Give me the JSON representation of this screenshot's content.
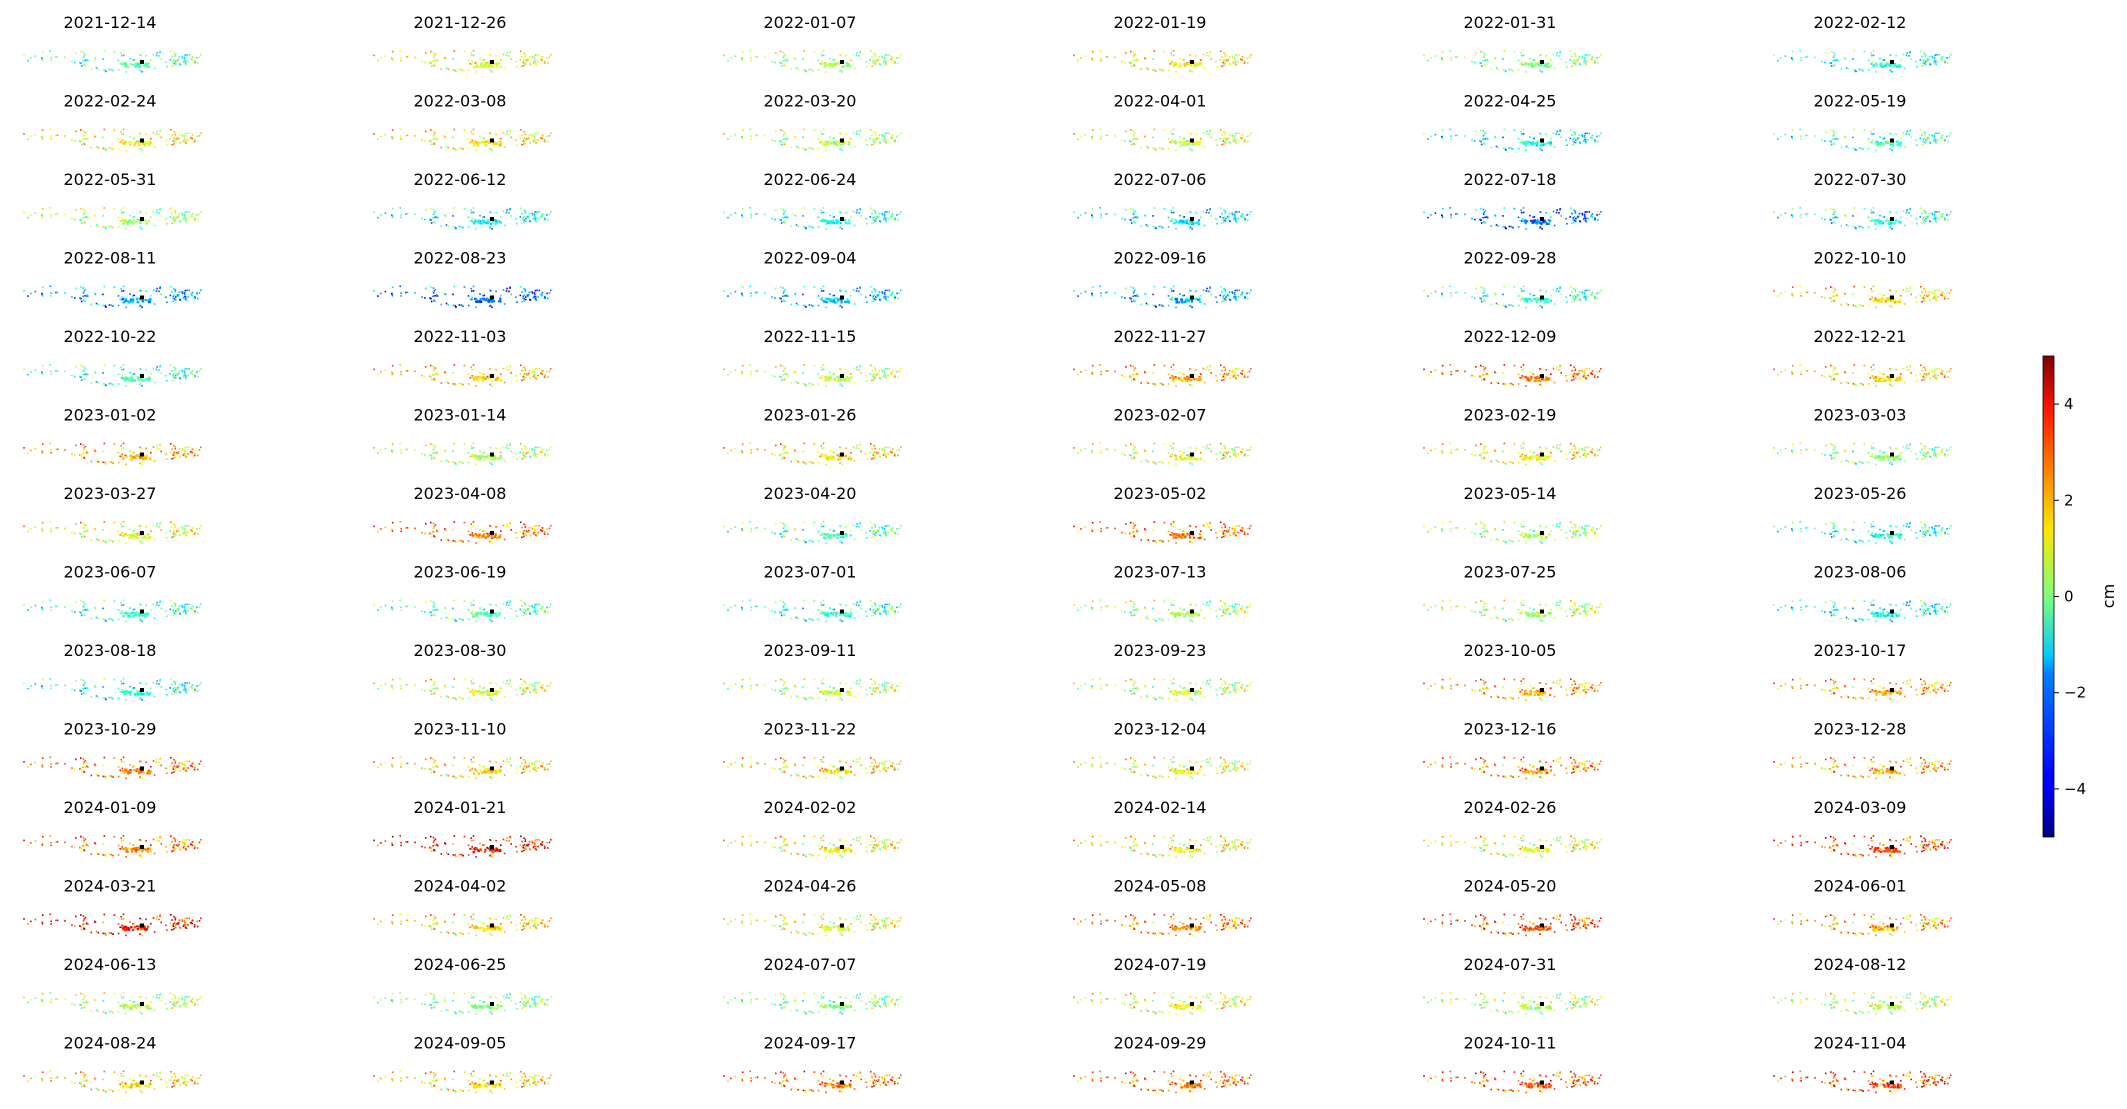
{
  "chart_data": {
    "type": "scatter",
    "layout": "small-multiples grid, 6 columns x 14 rows",
    "panel_titles": [
      "2021-12-14",
      "2021-12-26",
      "2022-01-07",
      "2022-01-19",
      "2022-01-31",
      "2022-02-12",
      "2022-02-24",
      "2022-03-08",
      "2022-03-20",
      "2022-04-01",
      "2022-04-25",
      "2022-05-19",
      "2022-05-31",
      "2022-06-12",
      "2022-06-24",
      "2022-07-06",
      "2022-07-18",
      "2022-07-30",
      "2022-08-11",
      "2022-08-23",
      "2022-09-04",
      "2022-09-16",
      "2022-09-28",
      "2022-10-10",
      "2022-10-22",
      "2022-11-03",
      "2022-11-15",
      "2022-11-27",
      "2022-12-09",
      "2022-12-21",
      "2023-01-02",
      "2023-01-14",
      "2023-01-26",
      "2023-02-07",
      "2023-02-19",
      "2023-03-03",
      "2023-03-27",
      "2023-04-08",
      "2023-04-20",
      "2023-05-02",
      "2023-05-14",
      "2023-05-26",
      "2023-06-07",
      "2023-06-19",
      "2023-07-01",
      "2023-07-13",
      "2023-07-25",
      "2023-08-06",
      "2023-08-18",
      "2023-08-30",
      "2023-09-11",
      "2023-09-23",
      "2023-10-05",
      "2023-10-17",
      "2023-10-29",
      "2023-11-10",
      "2023-11-22",
      "2023-12-04",
      "2023-12-16",
      "2023-12-28",
      "2024-01-09",
      "2024-01-21",
      "2024-02-02",
      "2024-02-14",
      "2024-02-26",
      "2024-03-09",
      "2024-03-21",
      "2024-04-02",
      "2024-04-26",
      "2024-05-08",
      "2024-05-20",
      "2024-06-01",
      "2024-06-13",
      "2024-06-25",
      "2024-07-07",
      "2024-07-19",
      "2024-07-31",
      "2024-08-12",
      "2024-08-24",
      "2024-09-05",
      "2024-09-17",
      "2024-09-29",
      "2024-10-11",
      "2024-11-04"
    ],
    "panel_mean_cm": [
      -0.5,
      1.0,
      0.3,
      1.3,
      0.0,
      -1.0,
      1.2,
      1.3,
      0.4,
      0.8,
      -1.3,
      -0.6,
      0.3,
      -1.2,
      -1.0,
      -1.5,
      -2.7,
      -1.0,
      -2.2,
      -2.7,
      -1.8,
      -2.0,
      -0.8,
      1.5,
      -0.8,
      1.8,
      0.6,
      2.0,
      2.5,
      1.5,
      2.0,
      0.5,
      1.5,
      1.0,
      1.2,
      0.0,
      1.0,
      2.5,
      -0.5,
      2.5,
      0.3,
      -1.0,
      -0.8,
      -0.5,
      -0.8,
      0.3,
      0.5,
      -1.2,
      -1.0,
      0.8,
      0.5,
      0.5,
      2.0,
      2.0,
      2.5,
      1.5,
      1.5,
      1.0,
      2.3,
      2.0,
      2.5,
      3.5,
      1.2,
      1.2,
      1.0,
      3.0,
      3.5,
      1.5,
      1.0,
      2.5,
      3.0,
      2.0,
      0.5,
      0.0,
      0.0,
      1.0,
      0.5,
      0.5,
      1.5,
      1.5,
      2.5,
      2.5,
      2.8,
      3.0
    ],
    "colorbar": {
      "label": "cm",
      "colormap": "jet",
      "range": [
        -5,
        5
      ],
      "ticks": [
        4,
        2,
        0,
        -2,
        -4
      ],
      "tick_labels": [
        "4",
        "2",
        "0",
        "−2",
        "−4"
      ]
    }
  }
}
